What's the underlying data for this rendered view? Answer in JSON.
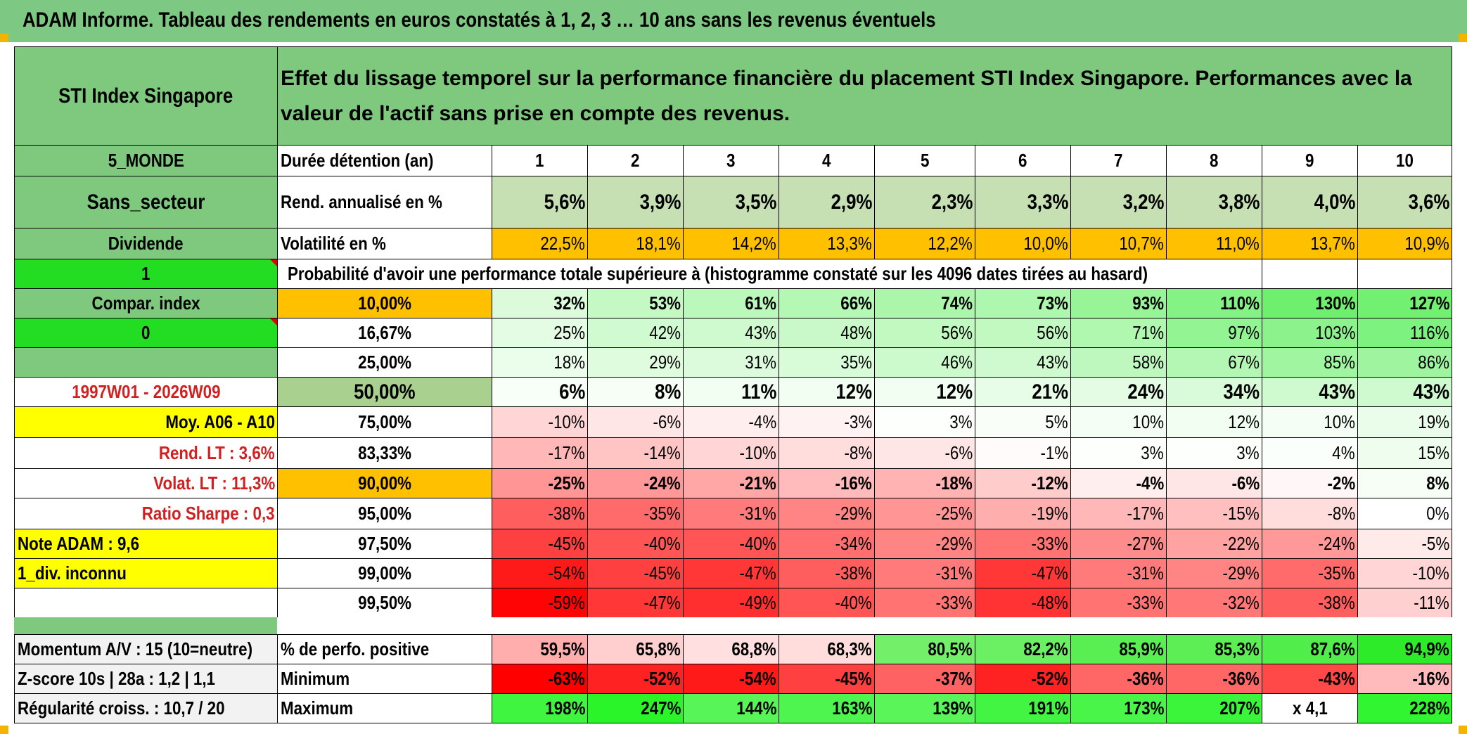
{
  "header": {
    "title": "ADAM Informe. Tableau des rendements en euros constatés à 1, 2, 3 … 10 ans sans les revenus éventuels"
  },
  "left_panel": {
    "title": "STI Index Singapore",
    "region": "5_MONDE",
    "sector": "Sans_secteur",
    "dividend_label": "Dividende",
    "dividend_flag": "1",
    "compare_label": "Compar. index",
    "compare_flag": "0",
    "period": "1997W01 - 2026W09",
    "avg_label": "Moy. A06 - A10",
    "rend_lt": "Rend. LT :   3,6%",
    "volat_lt": "Volat. LT :   11,3%",
    "sharpe": "Ratio Sharpe :   0,3",
    "note": "Note ADAM : 9,6",
    "div_status": "1_div. inconnu",
    "momentum": "Momentum A/V : 15 (10=neutre)",
    "zscore": "Z-score 10s | 28a : 1,2 | 1,1",
    "regularity": "Régularité croiss. : 10,7 / 20"
  },
  "description": "Effet du lissage temporel sur la performance financière du placement STI Index Singapore. Performances avec la valeur de l'actif sans prise en compte des revenus.",
  "table": {
    "duration_label": "Durée détention (an)",
    "years": [
      "1",
      "2",
      "3",
      "4",
      "5",
      "6",
      "7",
      "8",
      "9",
      "10"
    ],
    "rend_label": "Rend. annualisé en %",
    "rend": [
      "5,6%",
      "3,9%",
      "3,5%",
      "2,9%",
      "2,3%",
      "3,3%",
      "3,2%",
      "3,8%",
      "4,0%",
      "3,6%"
    ],
    "vol_label": "Volatilité en %",
    "vol": [
      "22,5%",
      "18,1%",
      "14,2%",
      "13,3%",
      "12,2%",
      "10,0%",
      "10,7%",
      "11,0%",
      "13,7%",
      "10,9%"
    ],
    "prob_label": "Probabilité d'avoir une performance totale supérieure à (histogramme constaté sur les 4096 dates tirées au hasard)",
    "prob_rows": [
      {
        "p": "10,00%",
        "v": [
          "32%",
          "53%",
          "61%",
          "66%",
          "74%",
          "73%",
          "93%",
          "110%",
          "130%",
          "127%"
        ]
      },
      {
        "p": "16,67%",
        "v": [
          "25%",
          "42%",
          "43%",
          "48%",
          "56%",
          "56%",
          "71%",
          "97%",
          "103%",
          "116%"
        ]
      },
      {
        "p": "25,00%",
        "v": [
          "18%",
          "29%",
          "31%",
          "35%",
          "46%",
          "43%",
          "58%",
          "67%",
          "85%",
          "86%"
        ]
      },
      {
        "p": "50,00%",
        "v": [
          "6%",
          "8%",
          "11%",
          "12%",
          "12%",
          "21%",
          "24%",
          "34%",
          "43%",
          "43%"
        ]
      },
      {
        "p": "75,00%",
        "v": [
          "-10%",
          "-6%",
          "-4%",
          "-3%",
          "3%",
          "5%",
          "10%",
          "12%",
          "10%",
          "19%"
        ]
      },
      {
        "p": "83,33%",
        "v": [
          "-17%",
          "-14%",
          "-10%",
          "-8%",
          "-6%",
          "-1%",
          "3%",
          "3%",
          "4%",
          "15%"
        ]
      },
      {
        "p": "90,00%",
        "v": [
          "-25%",
          "-24%",
          "-21%",
          "-16%",
          "-18%",
          "-12%",
          "-4%",
          "-6%",
          "-2%",
          "8%"
        ]
      },
      {
        "p": "95,00%",
        "v": [
          "-38%",
          "-35%",
          "-31%",
          "-29%",
          "-25%",
          "-19%",
          "-17%",
          "-15%",
          "-8%",
          "0%"
        ]
      },
      {
        "p": "97,50%",
        "v": [
          "-45%",
          "-40%",
          "-40%",
          "-34%",
          "-29%",
          "-33%",
          "-27%",
          "-22%",
          "-24%",
          "-5%"
        ]
      },
      {
        "p": "99,00%",
        "v": [
          "-54%",
          "-45%",
          "-47%",
          "-38%",
          "-31%",
          "-47%",
          "-31%",
          "-29%",
          "-35%",
          "-10%"
        ]
      },
      {
        "p": "99,50%",
        "v": [
          "-59%",
          "-47%",
          "-49%",
          "-40%",
          "-33%",
          "-48%",
          "-33%",
          "-32%",
          "-38%",
          "-11%"
        ]
      }
    ],
    "pos_label": "% de perfo. positive",
    "pos": [
      "59,5%",
      "65,8%",
      "68,8%",
      "68,3%",
      "80,5%",
      "82,2%",
      "85,9%",
      "85,3%",
      "87,6%",
      "94,9%"
    ],
    "min_label": "Minimum",
    "min": [
      "-63%",
      "-52%",
      "-54%",
      "-45%",
      "-37%",
      "-52%",
      "-36%",
      "-36%",
      "-43%",
      "-16%"
    ],
    "max_label": "Maximum",
    "max": [
      "198%",
      "247%",
      "144%",
      "163%",
      "139%",
      "191%",
      "173%",
      "207%",
      "x 4,1",
      "228%"
    ]
  },
  "colors": {
    "header_green": "#7dc882",
    "label_green": "#7fc97f",
    "bright_green": "#22dd22",
    "orange": "#ffc000",
    "yellow": "#ffff00",
    "red_text": "#d21f1f"
  }
}
